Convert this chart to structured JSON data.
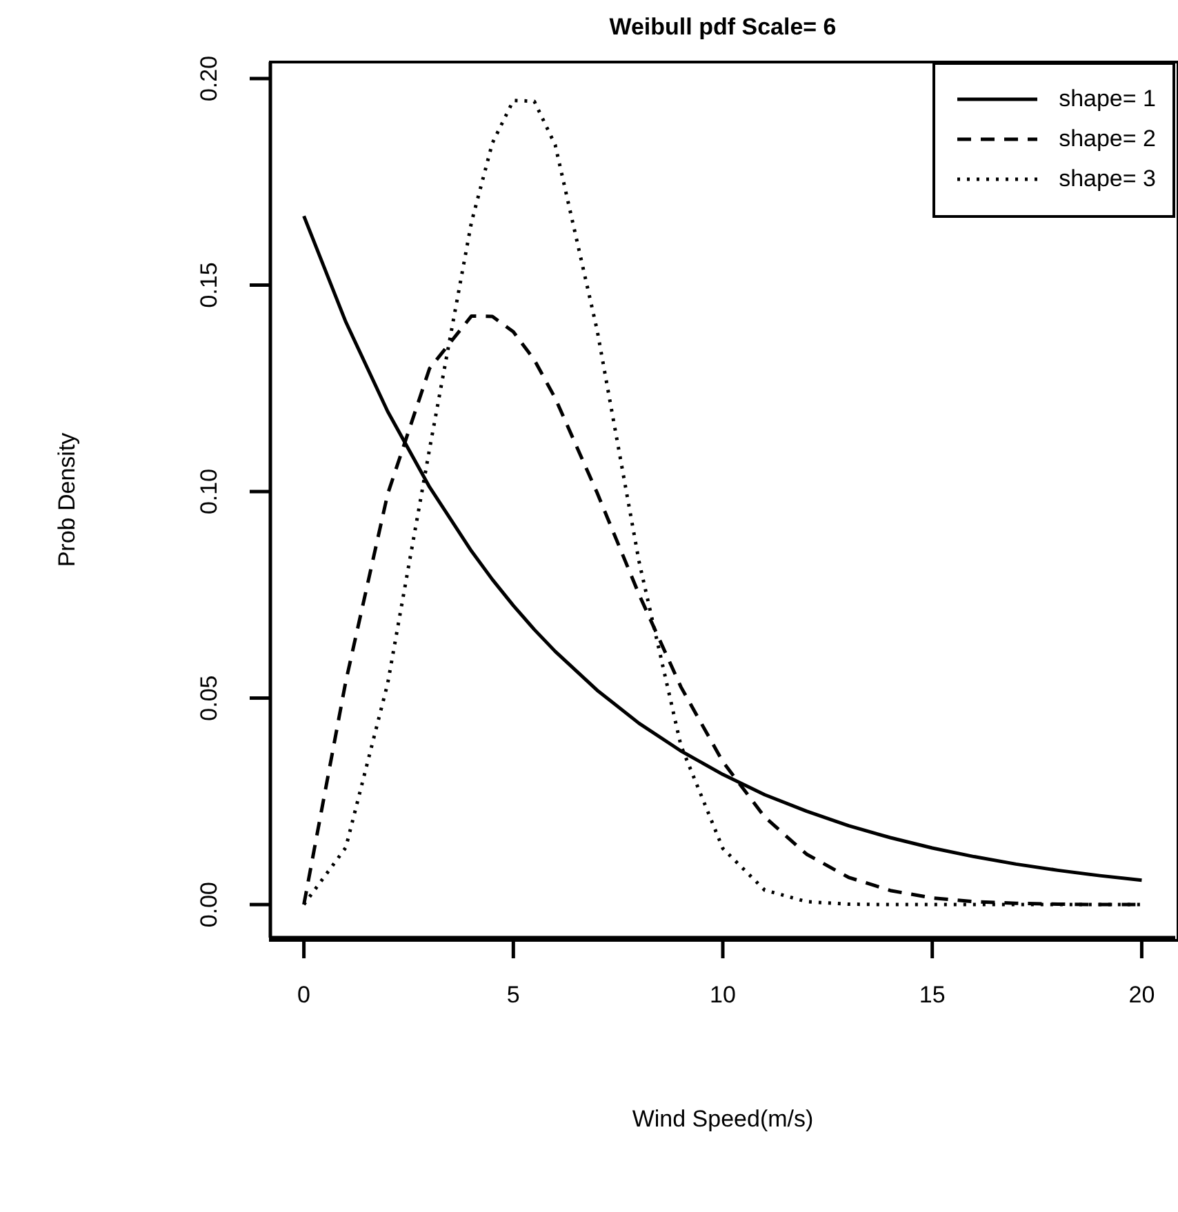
{
  "chart_data": {
    "type": "line",
    "title": "Weibull pdf Scale= 6",
    "xlabel": "Wind Speed(m/s)",
    "ylabel": "Prob Density",
    "x": [
      0,
      1,
      2,
      3,
      4,
      4.5,
      5,
      5.5,
      6,
      7,
      8,
      9,
      10,
      11,
      12,
      13,
      14,
      15,
      16,
      17,
      18,
      19,
      20
    ],
    "series": [
      {
        "name": "shape= 1",
        "color": "#000000",
        "line_style": "solid",
        "values": [
          0.1667,
          0.1411,
          0.1194,
          0.1011,
          0.0856,
          0.0787,
          0.0724,
          0.0666,
          0.0613,
          0.0519,
          0.0439,
          0.0372,
          0.0315,
          0.0266,
          0.0226,
          0.0191,
          0.0162,
          0.0137,
          0.0116,
          0.0098,
          0.0083,
          0.007,
          0.0059
        ]
      },
      {
        "name": "shape= 2",
        "color": "#000000",
        "line_style": "dashed",
        "values": [
          0,
          0.054,
          0.0994,
          0.1298,
          0.1425,
          0.1424,
          0.1387,
          0.1319,
          0.1226,
          0.0997,
          0.0751,
          0.0527,
          0.0346,
          0.0212,
          0.0122,
          0.0066,
          0.0034,
          0.0016,
          0.0007,
          0.0003,
          0.0001,
          0,
          0
        ]
      },
      {
        "name": "shape= 3",
        "color": "#000000",
        "line_style": "dotted",
        "values": [
          0,
          0.0138,
          0.0535,
          0.1103,
          0.1652,
          0.1844,
          0.1947,
          0.1945,
          0.1839,
          0.1391,
          0.0831,
          0.0385,
          0.0136,
          0.0035,
          0.0007,
          0.0001,
          0,
          0,
          0,
          0,
          0,
          0,
          0
        ]
      }
    ],
    "xlim": [
      -0.8,
      20.8
    ],
    "xticks": [
      0,
      5,
      10,
      15,
      20
    ],
    "ylim": [
      -0.008,
      0.204
    ],
    "yticks": [
      {
        "value": 0,
        "label": "0.00"
      },
      {
        "value": 0.05,
        "label": "0.05"
      },
      {
        "value": 0.1,
        "label": "0.10"
      },
      {
        "value": 0.15,
        "label": "0.15"
      },
      {
        "value": 0.2,
        "label": "0.20"
      }
    ],
    "grid": false,
    "legend": "top right"
  }
}
